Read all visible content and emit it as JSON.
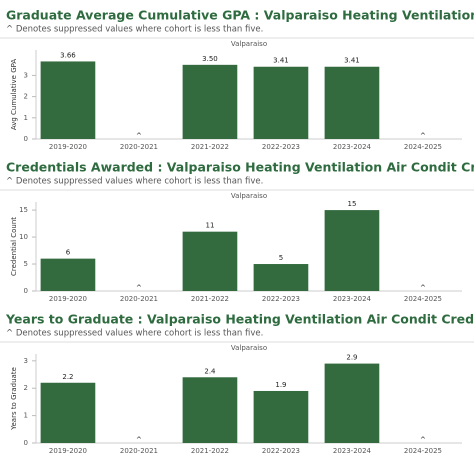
{
  "chart_data": [
    {
      "type": "bar",
      "title": "Graduate Average Cumulative GPA : Valparaiso Heating Ventilation Air Condit Credentials",
      "subtitle": "^ Denotes suppressed values where cohort is less than five.",
      "header": "Valparaiso",
      "y_label": "Avg Cumulative GPA",
      "categories": [
        "2019-2020",
        "2020-2021",
        "2021-2022",
        "2022-2023",
        "2023-2024",
        "2024-2025"
      ],
      "values": [
        3.66,
        null,
        3.5,
        3.41,
        3.41,
        null
      ],
      "value_labels": [
        "3.66",
        "^",
        "3.50",
        "3.41",
        "3.41",
        "^"
      ],
      "color": "#336b3f",
      "ylim": [
        0,
        4.2
      ],
      "yticks": [
        0,
        1,
        2,
        3
      ]
    },
    {
      "type": "bar",
      "title": "Credentials Awarded : Valparaiso Heating Ventilation Air Condit Credentials",
      "subtitle": "^ Denotes suppressed values where cohort is less than five.",
      "header": "Valparaiso",
      "y_label": "Credential Count",
      "categories": [
        "2019-2020",
        "2020-2021",
        "2021-2022",
        "2022-2023",
        "2023-2024",
        "2024-2025"
      ],
      "values": [
        6,
        null,
        11,
        5,
        15,
        null
      ],
      "value_labels": [
        "6",
        "^",
        "11",
        "5",
        "15",
        "^"
      ],
      "color": "#336b3f",
      "ylim": [
        0,
        16.5
      ],
      "yticks": [
        0,
        5,
        10,
        15
      ]
    },
    {
      "type": "bar",
      "title": "Years to Graduate : Valparaiso Heating Ventilation Air Condit Credentials",
      "subtitle": "^ Denotes suppressed values where cohort is less than five.",
      "header": "Valparaiso",
      "y_label": "Years to Graduate",
      "categories": [
        "2019-2020",
        "2020-2021",
        "2021-2022",
        "2022-2023",
        "2023-2024",
        "2024-2025"
      ],
      "values": [
        2.2,
        null,
        2.4,
        1.9,
        2.9,
        null
      ],
      "value_labels": [
        "2.2",
        "^",
        "2.4",
        "1.9",
        "2.9",
        "^"
      ],
      "color": "#336b3f",
      "ylim": [
        0,
        3.25
      ],
      "yticks": [
        0,
        1,
        2,
        3
      ]
    }
  ]
}
